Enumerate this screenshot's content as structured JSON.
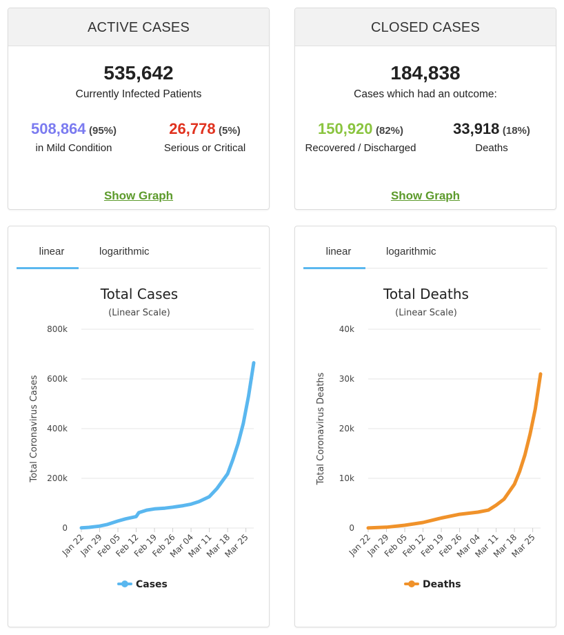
{
  "active": {
    "title": "ACTIVE CASES",
    "total": "535,642",
    "total_label": "Currently Infected Patients",
    "mild_value": "508,864",
    "mild_pct": "(95%)",
    "mild_label": "in Mild Condition",
    "mild_color": "#7b7bf0",
    "critical_value": "26,778",
    "critical_pct": "(5%)",
    "critical_label": "Serious or Critical",
    "critical_color": "#e0321f",
    "link": "Show Graph"
  },
  "closed": {
    "title": "CLOSED CASES",
    "total": "184,838",
    "total_label": "Cases which had an outcome:",
    "recovered_value": "150,920",
    "recovered_pct": "(82%)",
    "recovered_label": "Recovered / Discharged",
    "recovered_color": "#8ac43f",
    "deaths_value": "33,918",
    "deaths_pct": "(18%)",
    "deaths_label": "Deaths",
    "deaths_color": "#222222",
    "link": "Show Graph"
  },
  "tabs": {
    "linear": "linear",
    "log": "logarithmic"
  },
  "chart_data": [
    {
      "type": "line",
      "title": "Total Cases",
      "subtitle": "(Linear Scale)",
      "xlabel": "",
      "ylabel": "Total Coronavirus Cases",
      "ylim": [
        0,
        800000
      ],
      "yticks": [
        0,
        200000,
        400000,
        600000,
        800000
      ],
      "ytick_labels": [
        "0",
        "200k",
        "400k",
        "600k",
        "800k"
      ],
      "categories": [
        "Jan 22",
        "Jan 29",
        "Feb 05",
        "Feb 12",
        "Feb 19",
        "Feb 26",
        "Mar 04",
        "Mar 11",
        "Mar 18",
        "Mar 25"
      ],
      "color": "#5ab7ef",
      "legend": "bottom",
      "series": [
        {
          "name": "Cases",
          "x": [
            "Jan 22",
            "Jan 25",
            "Jan 29",
            "Feb 01",
            "Feb 05",
            "Feb 08",
            "Feb 12",
            "Feb 13",
            "Feb 16",
            "Feb 19",
            "Feb 23",
            "Feb 26",
            "Mar 01",
            "Mar 04",
            "Mar 07",
            "Mar 11",
            "Mar 14",
            "Mar 18",
            "Mar 20",
            "Mar 22",
            "Mar 24",
            "Mar 26",
            "Mar 28"
          ],
          "values": [
            580,
            2900,
            7800,
            14500,
            28000,
            37000,
            46000,
            62000,
            72000,
            77000,
            80000,
            84000,
            90000,
            96000,
            106000,
            126000,
            160000,
            218000,
            275000,
            340000,
            420000,
            530000,
            665000
          ]
        }
      ]
    },
    {
      "type": "line",
      "title": "Total Deaths",
      "subtitle": "(Linear Scale)",
      "xlabel": "",
      "ylabel": "Total Coronavirus Deaths",
      "ylim": [
        0,
        40000
      ],
      "yticks": [
        0,
        10000,
        20000,
        30000,
        40000
      ],
      "ytick_labels": [
        "0",
        "10k",
        "20k",
        "30k",
        "40k"
      ],
      "categories": [
        "Jan 22",
        "Jan 29",
        "Feb 05",
        "Feb 12",
        "Feb 19",
        "Feb 26",
        "Mar 04",
        "Mar 11",
        "Mar 18",
        "Mar 25"
      ],
      "color": "#f0922a",
      "legend": "bottom",
      "series": [
        {
          "name": "Deaths",
          "x": [
            "Jan 22",
            "Jan 29",
            "Feb 05",
            "Feb 12",
            "Feb 19",
            "Feb 26",
            "Mar 04",
            "Mar 08",
            "Mar 11",
            "Mar 14",
            "Mar 18",
            "Mar 20",
            "Mar 22",
            "Mar 24",
            "Mar 26",
            "Mar 28"
          ],
          "values": [
            17,
            170,
            560,
            1115,
            2010,
            2770,
            3200,
            3600,
            4600,
            5800,
            8800,
            11400,
            14700,
            18900,
            24000,
            31000
          ]
        }
      ]
    }
  ]
}
